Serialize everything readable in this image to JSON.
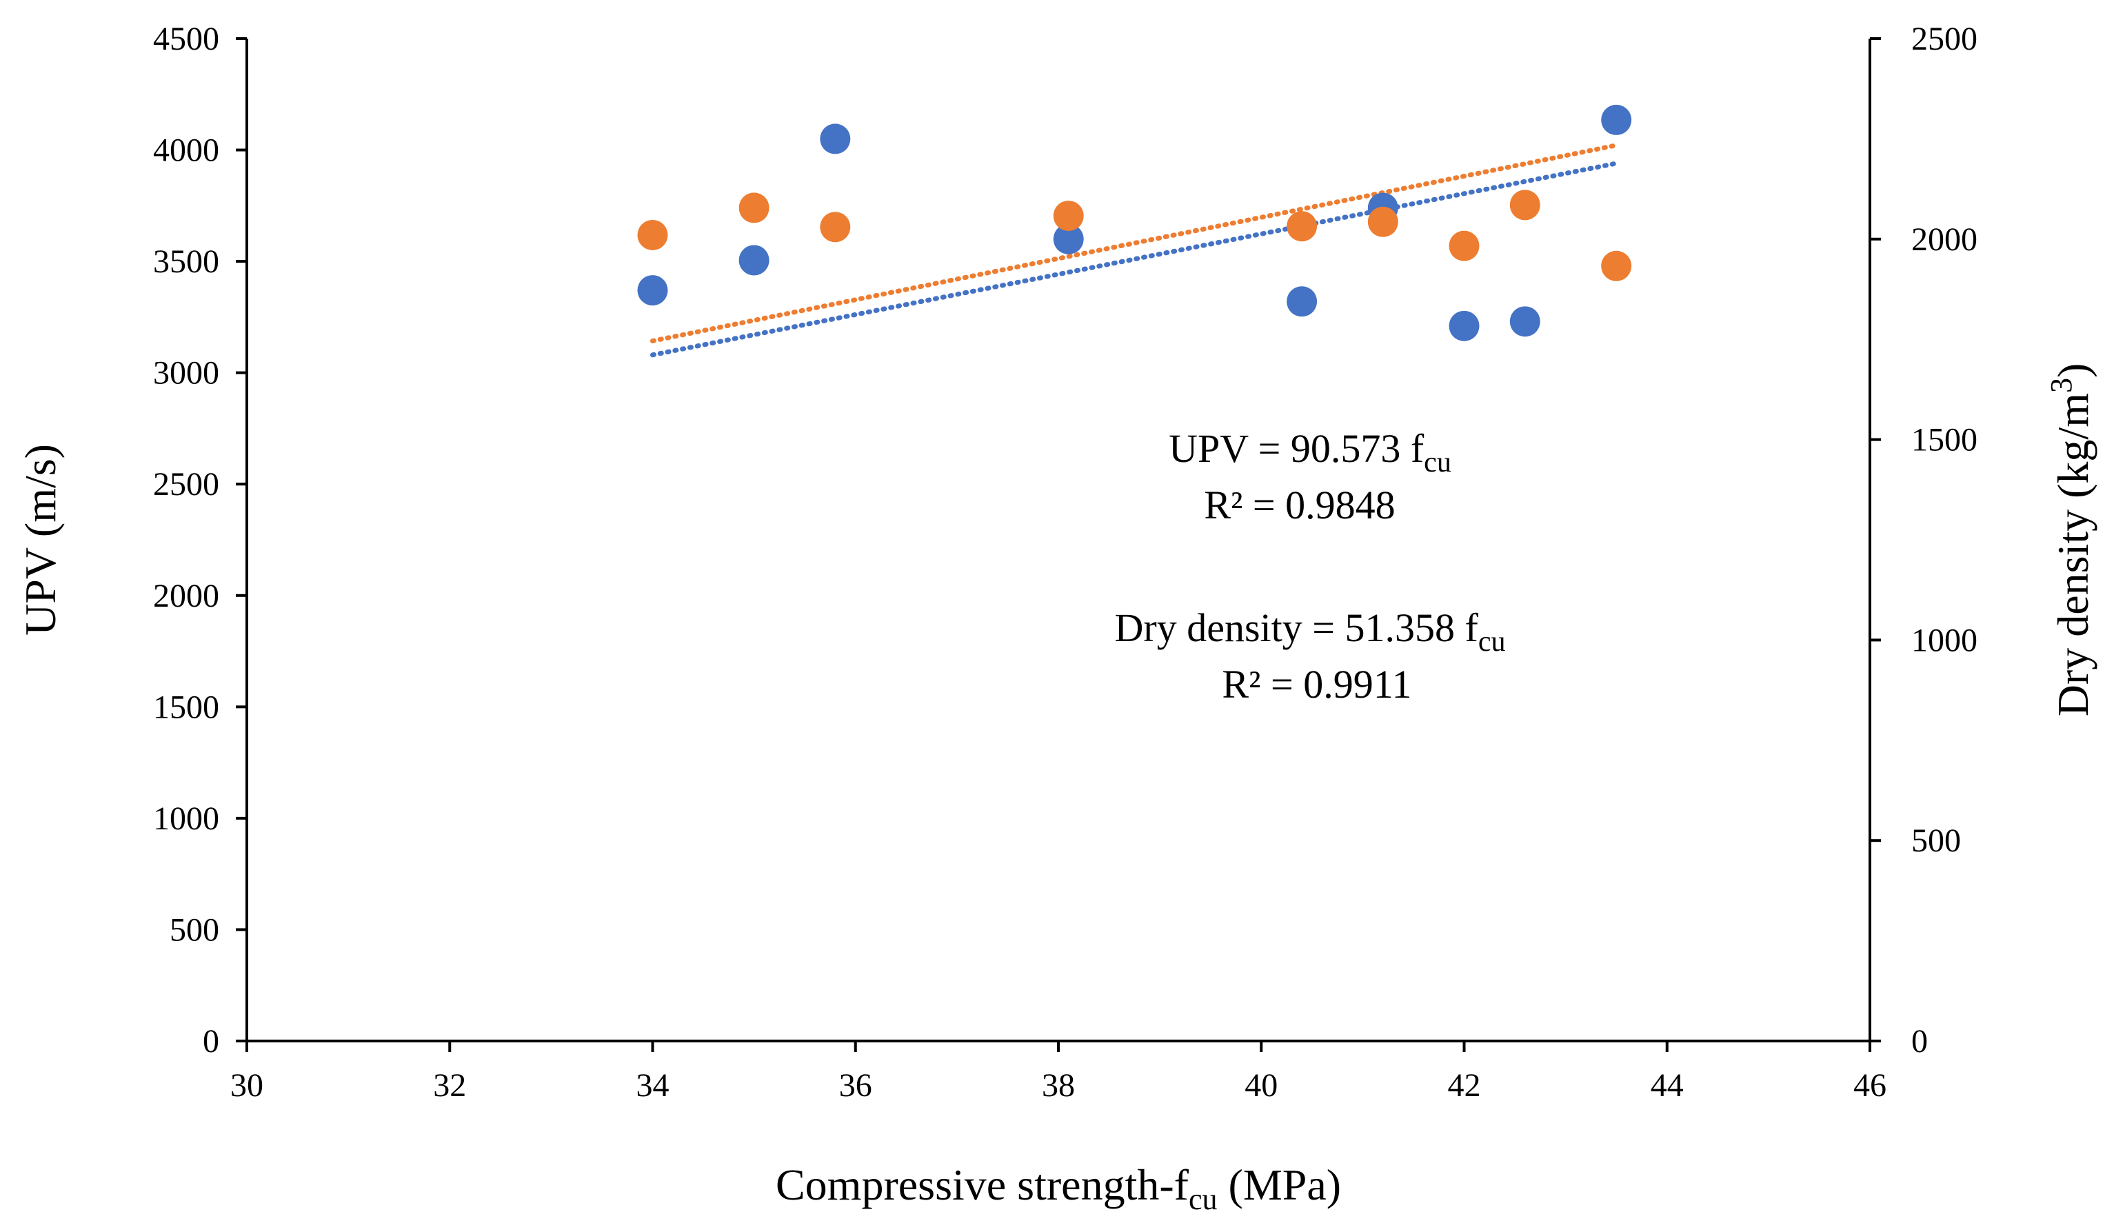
{
  "chart_data": {
    "type": "scatter",
    "xlabel": {
      "main": "Compressive strength-f",
      "sub": "cu",
      "tail": " (MPa)"
    },
    "ylabel": "UPV (m/s)",
    "y2label": {
      "main": "Dry density (kg/m",
      "sup": "3",
      "tail": ")"
    },
    "xlim": [
      30,
      46
    ],
    "ylim": [
      0,
      4500
    ],
    "y2lim": [
      0,
      2500
    ],
    "xticks": [
      "30",
      "32",
      "34",
      "36",
      "38",
      "40",
      "42",
      "44",
      "46"
    ],
    "yticks": [
      "0",
      "500",
      "1000",
      "1500",
      "2000",
      "2500",
      "3000",
      "3500",
      "4000",
      "4500"
    ],
    "y2ticks": [
      "0",
      "500",
      "1000",
      "1500",
      "2000",
      "2500"
    ],
    "grid": false,
    "colors": {
      "upv": "#4472C4",
      "density": "#ED7D31"
    },
    "series": [
      {
        "axis": "left",
        "color": "#4472C4",
        "x": [
          34.0,
          35.0,
          35.8,
          38.1,
          40.4,
          41.2,
          42.0,
          42.6,
          43.5
        ],
        "y": [
          3370,
          3505,
          4050,
          3600,
          3320,
          3740,
          3210,
          3230,
          4135
        ]
      },
      {
        "axis": "right",
        "color": "#ED7D31",
        "x": [
          34.0,
          35.0,
          35.8,
          38.1,
          40.4,
          41.2,
          42.0,
          42.6,
          43.5
        ],
        "y": [
          2010,
          2078,
          2030,
          2058,
          2032,
          2043,
          1983,
          2085,
          1933
        ]
      }
    ],
    "trendlines": [
      {
        "axis": "left",
        "color": "#4472C4",
        "style": "dotted",
        "x": [
          34.0,
          43.5
        ],
        "y": [
          3080,
          3940
        ]
      },
      {
        "axis": "right",
        "color": "#ED7D31",
        "style": "dotted",
        "x": [
          34.0,
          43.5
        ],
        "y": [
          1746,
          2234
        ]
      }
    ],
    "annotations": {
      "upv_eq": {
        "main": "UPV = 90.573  f",
        "sub": "cu"
      },
      "upv_r2": "R² = 0.9848",
      "dd_eq": {
        "main": "Dry density = 51.358  f",
        "sub": "cu"
      },
      "dd_r2": "R² = 0.9911"
    }
  }
}
